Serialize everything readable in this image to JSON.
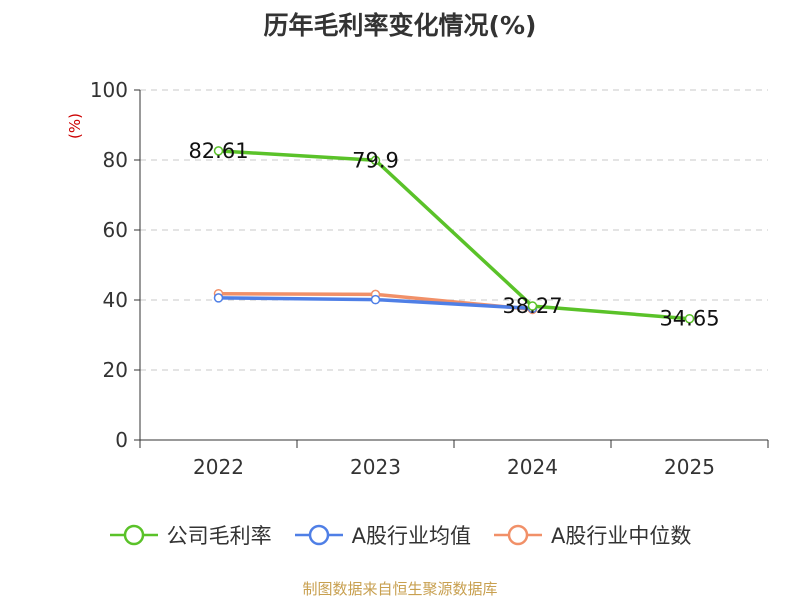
{
  "colors": {
    "company": "#5ac229",
    "avg": "#4f7fe6",
    "median": "#f19068",
    "axis": "#333333",
    "grid": "#c8c8c8",
    "unit": "#cc0000",
    "source": "#c8a050"
  },
  "source_text": "制图数据来自恒生聚源数据库",
  "chart_data": {
    "type": "line",
    "title": "历年毛利率变化情况(%)",
    "ylabel": "(%)",
    "xlabel": "",
    "categories": [
      "2022",
      "2023",
      "2024",
      "2025"
    ],
    "ylim": [
      0,
      100
    ],
    "yticks": [
      0,
      20,
      40,
      60,
      80,
      100
    ],
    "grid": true,
    "legend_position": "bottom",
    "series": [
      {
        "name": "公司毛利率",
        "values": [
          82.61,
          79.9,
          38.27,
          34.65
        ],
        "color_key": "company",
        "labels": [
          "82.61",
          "79.9",
          "38.27",
          "34.65"
        ]
      },
      {
        "name": "A股行业均值",
        "values": [
          40.6,
          40.1,
          37.6,
          null
        ],
        "color_key": "avg"
      },
      {
        "name": "A股行业中位数",
        "values": [
          41.8,
          41.6,
          37.3,
          null
        ],
        "color_key": "median"
      }
    ]
  }
}
